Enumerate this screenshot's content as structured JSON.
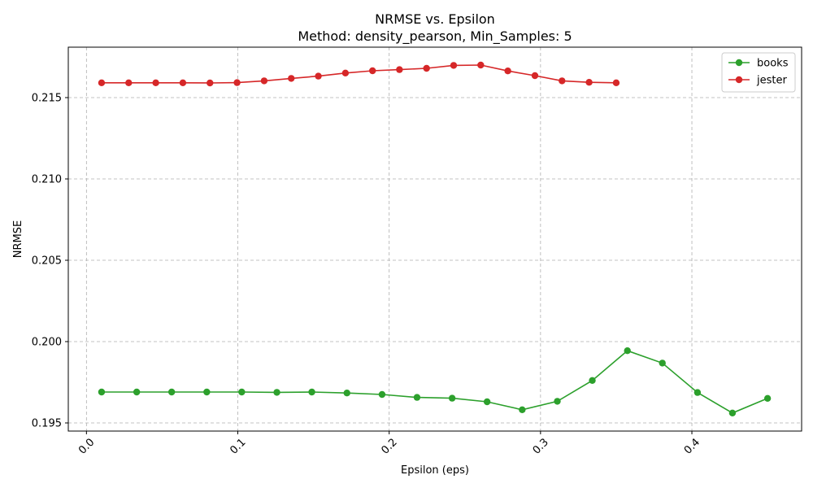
{
  "chart_data": {
    "type": "line",
    "title": "NRMSE vs. Epsilon",
    "subtitle": "Method: density_pearson, Min_Samples: 5",
    "xlabel": "Epsilon (eps)",
    "ylabel": "NRMSE",
    "xlim": [
      -0.012,
      0.4725
    ],
    "ylim": [
      0.1945,
      0.2181
    ],
    "x_ticks": [
      0.0,
      0.1,
      0.2,
      0.3,
      0.4
    ],
    "x_tick_labels": [
      "0.0",
      "0.1",
      "0.2",
      "0.3",
      "0.4"
    ],
    "y_ticks": [
      0.195,
      0.2,
      0.205,
      0.21,
      0.215
    ],
    "y_tick_labels": [
      "0.195",
      "0.200",
      "0.205",
      "0.210",
      "0.215"
    ],
    "grid": true,
    "legend_position": "top-right",
    "series": [
      {
        "name": "books",
        "color": "#2ca02c",
        "x": [
          0.01,
          0.0332,
          0.0563,
          0.0795,
          0.1026,
          0.1258,
          0.1489,
          0.1721,
          0.1953,
          0.2184,
          0.2416,
          0.2647,
          0.2879,
          0.3111,
          0.3342,
          0.3574,
          0.3805,
          0.4037,
          0.4268,
          0.45
        ],
        "y": [
          0.1969,
          0.1969,
          0.1969,
          0.1969,
          0.1969,
          0.19688,
          0.1969,
          0.19684,
          0.19675,
          0.19657,
          0.19652,
          0.1963,
          0.19581,
          0.19633,
          0.19761,
          0.19944,
          0.19868,
          0.19687,
          0.19561,
          0.19651
        ]
      },
      {
        "name": "jester",
        "color": "#d62728",
        "x": [
          0.01,
          0.0279,
          0.0458,
          0.0637,
          0.0816,
          0.0995,
          0.1174,
          0.1353,
          0.1532,
          0.1711,
          0.189,
          0.2068,
          0.2247,
          0.2426,
          0.2605,
          0.2784,
          0.2963,
          0.3142,
          0.3321,
          0.35
        ],
        "y": [
          0.21591,
          0.21591,
          0.21591,
          0.21591,
          0.2159,
          0.21592,
          0.21603,
          0.21618,
          0.21632,
          0.21651,
          0.21665,
          0.21672,
          0.2168,
          0.21698,
          0.217,
          0.21664,
          0.21635,
          0.21603,
          0.21594,
          0.21591
        ]
      }
    ]
  }
}
